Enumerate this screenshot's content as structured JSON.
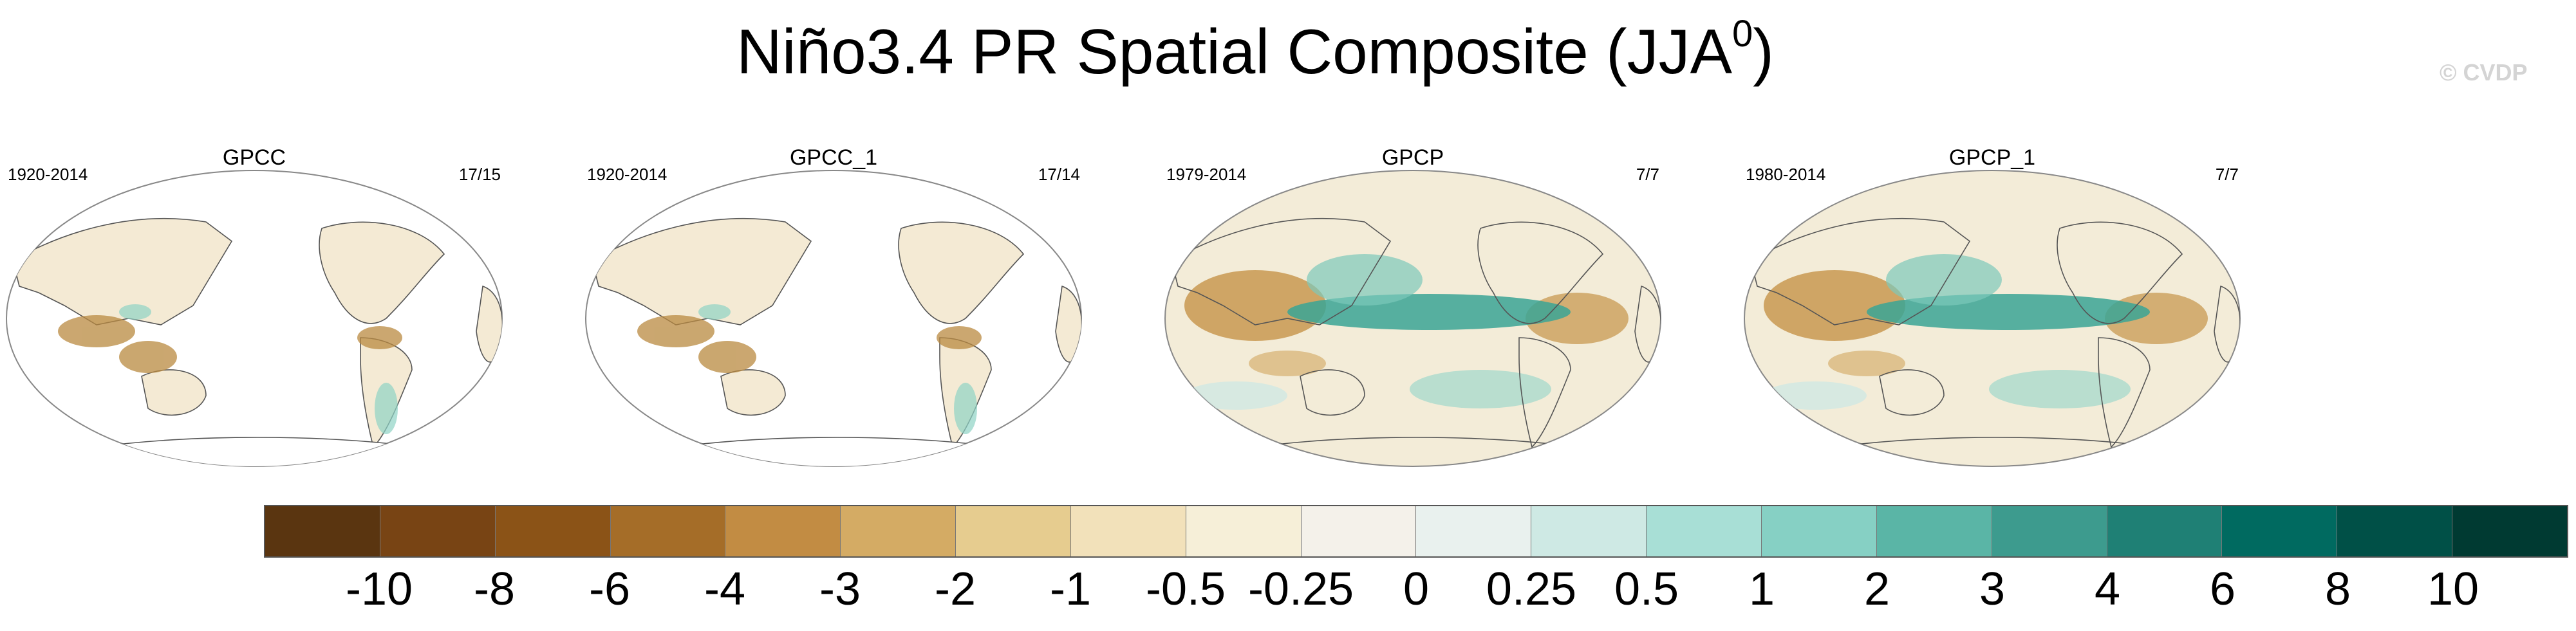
{
  "title": {
    "main": "Niño3.4 PR Spatial Composite (JJA",
    "superscript": "0",
    "close": ")"
  },
  "watermark": "© CVDP",
  "panels": [
    {
      "label": "GPCC",
      "years": "1920-2014",
      "count": "17/15",
      "coverage": "land"
    },
    {
      "label": "GPCC_1",
      "years": "1920-2014",
      "count": "17/14",
      "coverage": "land"
    },
    {
      "label": "GPCP",
      "years": "1979-2014",
      "count": "7/7",
      "coverage": "global"
    },
    {
      "label": "GPCP_1",
      "years": "1980-2014",
      "count": "7/7",
      "coverage": "global"
    }
  ],
  "colorbar": {
    "colors": [
      "#5a3510",
      "#784414",
      "#8b5317",
      "#a56d28",
      "#c28c43",
      "#d4ab64",
      "#e6cc8f",
      "#f2e1ba",
      "#f6efd8",
      "#f4f1ea",
      "#e9f1ee",
      "#cee9e4",
      "#a8dfd6",
      "#86d0c4",
      "#5ab5a6",
      "#3d9b8e",
      "#1f8075",
      "#006a60",
      "#005047",
      "#003a32"
    ],
    "labels": [
      "-10",
      "-8",
      "-6",
      "-4",
      "-3",
      "-2",
      "-1",
      "-0.5",
      "-0.25",
      "0",
      "0.25",
      "0.5",
      "1",
      "2",
      "3",
      "4",
      "6",
      "8",
      "10"
    ]
  }
}
